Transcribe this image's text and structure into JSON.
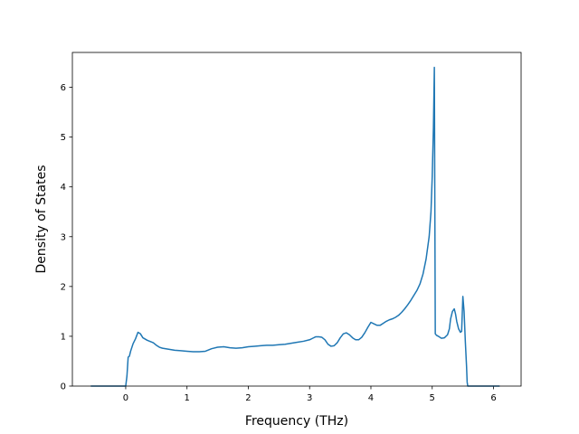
{
  "chart_data": {
    "type": "line",
    "title": "",
    "xlabel": "Frequency (THz)",
    "ylabel": "Density of States",
    "xlim": [
      -0.87,
      6.45
    ],
    "ylim": [
      0,
      6.7
    ],
    "xticks": [
      0,
      1,
      2,
      3,
      4,
      5,
      6
    ],
    "yticks": [
      0,
      1,
      2,
      3,
      4,
      5,
      6
    ],
    "grid": false,
    "line_color": "#1f77b4",
    "series": [
      {
        "x": [
          -0.57,
          -0.3,
          0.0,
          0.02,
          0.04,
          0.06,
          0.08,
          0.12,
          0.16,
          0.2,
          0.24,
          0.28,
          0.35,
          0.45,
          0.5,
          0.55,
          0.6,
          0.7,
          0.8,
          0.9,
          1.0,
          1.1,
          1.2,
          1.3,
          1.4,
          1.5,
          1.6,
          1.7,
          1.8,
          1.9,
          2.0,
          2.1,
          2.2,
          2.3,
          2.4,
          2.5,
          2.6,
          2.7,
          2.8,
          2.9,
          3.0,
          3.05,
          3.1,
          3.15,
          3.2,
          3.25,
          3.3,
          3.35,
          3.4,
          3.45,
          3.5,
          3.55,
          3.6,
          3.65,
          3.7,
          3.75,
          3.8,
          3.85,
          3.9,
          3.95,
          4.0,
          4.05,
          4.1,
          4.15,
          4.2,
          4.25,
          4.3,
          4.35,
          4.4,
          4.45,
          4.5,
          4.55,
          4.6,
          4.65,
          4.7,
          4.75,
          4.8,
          4.85,
          4.9,
          4.95,
          4.98,
          5.0,
          5.02,
          5.035,
          5.05,
          5.07,
          5.1,
          5.15,
          5.2,
          5.25,
          5.28,
          5.3,
          5.33,
          5.36,
          5.38,
          5.4,
          5.43,
          5.46,
          5.48,
          5.5,
          5.52,
          5.54,
          5.56,
          5.57,
          5.58,
          5.6,
          5.7,
          5.85,
          6.1
        ],
        "y": [
          0.0,
          0.0,
          0.0,
          0.2,
          0.58,
          0.6,
          0.7,
          0.85,
          0.95,
          1.08,
          1.05,
          0.97,
          0.92,
          0.87,
          0.82,
          0.78,
          0.76,
          0.74,
          0.72,
          0.71,
          0.7,
          0.69,
          0.69,
          0.7,
          0.75,
          0.78,
          0.79,
          0.77,
          0.76,
          0.77,
          0.79,
          0.8,
          0.81,
          0.82,
          0.82,
          0.83,
          0.84,
          0.86,
          0.88,
          0.9,
          0.93,
          0.96,
          0.99,
          0.99,
          0.98,
          0.93,
          0.84,
          0.8,
          0.81,
          0.87,
          0.97,
          1.05,
          1.07,
          1.03,
          0.97,
          0.93,
          0.93,
          0.98,
          1.07,
          1.18,
          1.28,
          1.25,
          1.22,
          1.22,
          1.26,
          1.3,
          1.33,
          1.35,
          1.38,
          1.42,
          1.48,
          1.55,
          1.63,
          1.72,
          1.82,
          1.92,
          2.05,
          2.25,
          2.55,
          3.0,
          3.5,
          4.2,
          5.2,
          6.4,
          1.05,
          1.02,
          1.0,
          0.96,
          0.97,
          1.03,
          1.15,
          1.35,
          1.5,
          1.55,
          1.45,
          1.3,
          1.15,
          1.08,
          1.1,
          1.8,
          1.5,
          0.9,
          0.4,
          0.08,
          0.0,
          0.0,
          0.0,
          0.0,
          0.0
        ]
      }
    ]
  }
}
